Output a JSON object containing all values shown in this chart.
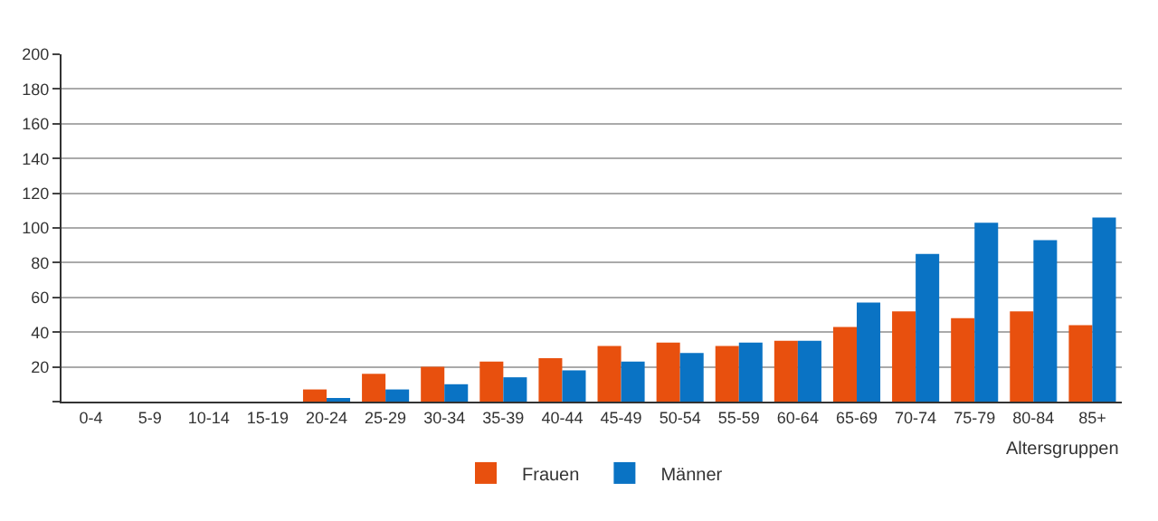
{
  "chart_data": {
    "type": "bar",
    "xlabel": "Altersgruppen",
    "categories": [
      "0-4",
      "5-9",
      "10-14",
      "15-19",
      "20-24",
      "25-29",
      "30-34",
      "35-39",
      "40-44",
      "45-49",
      "50-54",
      "55-59",
      "60-64",
      "65-69",
      "70-74",
      "75-79",
      "80-84",
      "85+"
    ],
    "series": [
      {
        "name": "Frauen",
        "color": "#e8500e",
        "values": [
          0,
          0,
          0,
          0,
          7,
          16,
          20,
          23,
          25,
          32,
          34,
          32,
          35,
          43,
          52,
          48,
          52,
          44
        ]
      },
      {
        "name": "Männer",
        "color": "#0a73c4",
        "values": [
          0,
          0,
          0,
          0,
          2,
          7,
          10,
          14,
          18,
          23,
          28,
          34,
          35,
          57,
          85,
          103,
          93,
          106
        ]
      }
    ],
    "ylim": [
      0,
      200
    ],
    "yticks": [
      {
        "value": 0,
        "label": null
      },
      20,
      40,
      60,
      80,
      100,
      120,
      140,
      160,
      180,
      200
    ],
    "grid": "y",
    "legend": "bottom"
  }
}
